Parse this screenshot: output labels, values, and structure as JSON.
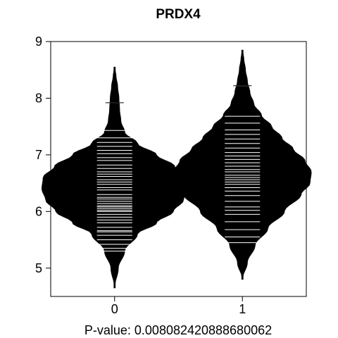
{
  "chart_data": {
    "type": "beanplot",
    "title": "PRDX4",
    "xlabel": "P-value: 0.008082420888680062",
    "ylabel": "",
    "categories": [
      "0",
      "1"
    ],
    "xlim": [
      0.5,
      2.5
    ],
    "ylim": [
      4.5,
      9.0
    ],
    "yticks": [
      5,
      6,
      7,
      8,
      9
    ],
    "overall_mean": 6.45,
    "series": [
      {
        "category": "0",
        "mean": 6.35,
        "density": [
          [
            4.65,
            0.0
          ],
          [
            5.0,
            0.03
          ],
          [
            5.3,
            0.08
          ],
          [
            5.6,
            0.18
          ],
          [
            5.8,
            0.33
          ],
          [
            6.0,
            0.46
          ],
          [
            6.2,
            0.54
          ],
          [
            6.4,
            0.57
          ],
          [
            6.6,
            0.56
          ],
          [
            6.8,
            0.47
          ],
          [
            7.0,
            0.33
          ],
          [
            7.2,
            0.18
          ],
          [
            7.4,
            0.08
          ],
          [
            7.6,
            0.05
          ],
          [
            7.8,
            0.04
          ],
          [
            8.0,
            0.035
          ],
          [
            8.2,
            0.025
          ],
          [
            8.4,
            0.012
          ],
          [
            8.55,
            0.0
          ]
        ],
        "observations": [
          5.3,
          5.35,
          5.42,
          5.5,
          5.58,
          5.64,
          5.66,
          5.72,
          5.8,
          5.85,
          5.9,
          5.95,
          6.0,
          6.02,
          6.05,
          6.08,
          6.1,
          6.14,
          6.18,
          6.22,
          6.25,
          6.3,
          6.35,
          6.38,
          6.42,
          6.48,
          6.52,
          6.56,
          6.62,
          6.66,
          6.7,
          6.76,
          6.82,
          6.9,
          6.95,
          7.02,
          7.08,
          7.15,
          7.22,
          7.3,
          7.43,
          7.92
        ]
      },
      {
        "category": "1",
        "mean": 6.66,
        "density": [
          [
            4.8,
            0.0
          ],
          [
            5.1,
            0.04
          ],
          [
            5.4,
            0.1
          ],
          [
            5.7,
            0.2
          ],
          [
            6.0,
            0.33
          ],
          [
            6.3,
            0.46
          ],
          [
            6.5,
            0.53
          ],
          [
            6.7,
            0.54
          ],
          [
            6.9,
            0.49
          ],
          [
            7.1,
            0.4
          ],
          [
            7.3,
            0.31
          ],
          [
            7.5,
            0.23
          ],
          [
            7.7,
            0.15
          ],
          [
            7.9,
            0.09
          ],
          [
            8.1,
            0.06
          ],
          [
            8.3,
            0.04
          ],
          [
            8.5,
            0.025
          ],
          [
            8.7,
            0.012
          ],
          [
            8.85,
            0.0
          ]
        ],
        "observations": [
          5.45,
          5.55,
          5.68,
          5.82,
          5.95,
          6.02,
          6.08,
          6.18,
          6.28,
          6.36,
          6.42,
          6.48,
          6.52,
          6.56,
          6.6,
          6.64,
          6.7,
          6.74,
          6.8,
          6.86,
          6.92,
          6.98,
          7.04,
          7.12,
          7.2,
          7.28,
          7.36,
          7.44,
          7.56,
          7.68,
          8.22
        ]
      }
    ]
  }
}
